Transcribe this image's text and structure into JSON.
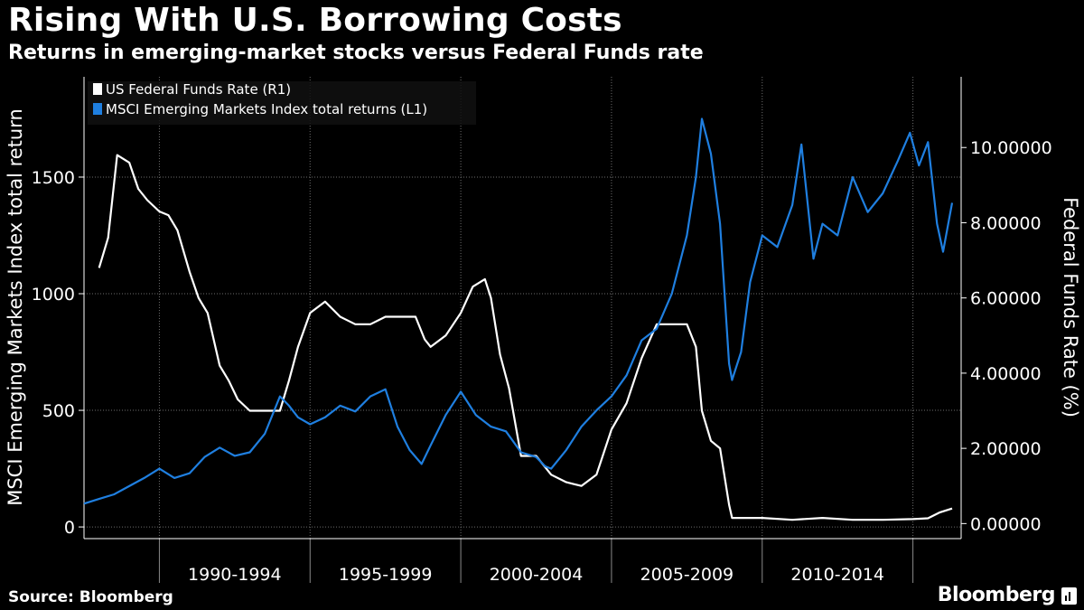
{
  "header": {
    "title": "Rising With U.S. Borrowing Costs",
    "subtitle": "Returns in emerging-market stocks versus Federal Funds rate"
  },
  "footer": {
    "source": "Source: Bloomberg",
    "brand": "Bloomberg"
  },
  "colors": {
    "background": "#000000",
    "fed_funds_line": "#ffffff",
    "msci_line": "#1f7fe0",
    "grid": "#6e6e6e"
  },
  "chart_data": {
    "type": "line",
    "title": "Rising With U.S. Borrowing Costs",
    "subtitle": "Returns in emerging-market stocks versus Federal Funds rate",
    "left_axis": {
      "label": "MSCI Emerging Markets Index total return",
      "ticks": [
        "0",
        "500",
        "1000",
        "1500"
      ],
      "range": [
        -50,
        1930
      ]
    },
    "right_axis": {
      "label": "Federal Funds Rate (%)",
      "ticks": [
        "0.00000",
        "2.00000",
        "4.00000",
        "6.00000",
        "8.00000",
        "10.00000"
      ],
      "range": [
        -0.4,
        11.88
      ]
    },
    "x_axis": {
      "range": [
        1987.5,
        2016.6
      ],
      "ticks": [
        1990,
        1995,
        2000,
        2005,
        2010,
        2015
      ],
      "labels": [
        "1990-1994",
        "1995-1999",
        "2000-2004",
        "2005-2009",
        "2010-2014"
      ]
    },
    "grid": true,
    "legend_position": "top-left",
    "series": [
      {
        "name": "US Federal Funds Rate  (R1)",
        "axis": "right",
        "x": [
          1988.0,
          1988.3,
          1988.6,
          1989.0,
          1989.3,
          1989.6,
          1990.0,
          1990.3,
          1990.6,
          1991.0,
          1991.3,
          1991.6,
          1992.0,
          1992.3,
          1992.6,
          1993.0,
          1993.5,
          1994.0,
          1994.3,
          1994.6,
          1995.0,
          1995.5,
          1996.0,
          1996.5,
          1997.0,
          1997.5,
          1998.0,
          1998.5,
          1998.8,
          1999.0,
          1999.5,
          2000.0,
          2000.4,
          2000.8,
          2001.0,
          2001.3,
          2001.6,
          2002.0,
          2002.5,
          2003.0,
          2003.5,
          2004.0,
          2004.5,
          2005.0,
          2005.5,
          2006.0,
          2006.5,
          2007.0,
          2007.5,
          2007.8,
          2008.0,
          2008.3,
          2008.6,
          2008.9,
          2009.0,
          2010.0,
          2011.0,
          2012.0,
          2013.0,
          2014.0,
          2015.0,
          2015.5,
          2015.9,
          2016.3
        ],
        "values": [
          6.8,
          7.6,
          9.8,
          9.6,
          8.9,
          8.6,
          8.3,
          8.2,
          7.8,
          6.7,
          6.0,
          5.6,
          4.2,
          3.8,
          3.3,
          3.0,
          3.0,
          3.0,
          3.8,
          4.7,
          5.6,
          5.9,
          5.5,
          5.3,
          5.3,
          5.5,
          5.5,
          5.5,
          4.9,
          4.7,
          5.0,
          5.6,
          6.3,
          6.5,
          6.0,
          4.5,
          3.6,
          1.8,
          1.8,
          1.3,
          1.1,
          1.0,
          1.3,
          2.5,
          3.2,
          4.4,
          5.3,
          5.3,
          5.3,
          4.7,
          3.0,
          2.2,
          2.0,
          0.5,
          0.15,
          0.15,
          0.1,
          0.15,
          0.1,
          0.1,
          0.12,
          0.14,
          0.3,
          0.4
        ]
      },
      {
        "name": "MSCI Emerging Markets Index total returns (L1)",
        "axis": "left",
        "x": [
          1987.5,
          1988.0,
          1988.5,
          1989.0,
          1989.5,
          1990.0,
          1990.5,
          1991.0,
          1991.5,
          1992.0,
          1992.5,
          1993.0,
          1993.5,
          1994.0,
          1994.3,
          1994.6,
          1995.0,
          1995.5,
          1996.0,
          1996.5,
          1997.0,
          1997.5,
          1997.9,
          1998.3,
          1998.7,
          1999.0,
          1999.5,
          2000.0,
          2000.5,
          2001.0,
          2001.5,
          2002.0,
          2002.5,
          2002.8,
          2003.0,
          2003.5,
          2004.0,
          2004.5,
          2005.0,
          2005.5,
          2006.0,
          2006.5,
          2007.0,
          2007.5,
          2007.8,
          2008.0,
          2008.3,
          2008.6,
          2008.9,
          2009.0,
          2009.3,
          2009.6,
          2010.0,
          2010.5,
          2011.0,
          2011.3,
          2011.7,
          2012.0,
          2012.5,
          2013.0,
          2013.5,
          2014.0,
          2014.5,
          2014.9,
          2015.2,
          2015.5,
          2015.8,
          2016.0,
          2016.3
        ],
        "values": [
          100,
          120,
          140,
          175,
          210,
          250,
          210,
          230,
          300,
          340,
          305,
          320,
          400,
          560,
          520,
          470,
          440,
          470,
          520,
          495,
          560,
          590,
          430,
          330,
          270,
          350,
          480,
          580,
          480,
          430,
          410,
          320,
          300,
          260,
          250,
          330,
          430,
          500,
          560,
          650,
          800,
          850,
          1000,
          1250,
          1500,
          1750,
          1600,
          1300,
          700,
          630,
          750,
          1050,
          1250,
          1200,
          1380,
          1640,
          1150,
          1300,
          1250,
          1500,
          1350,
          1430,
          1570,
          1690,
          1550,
          1650,
          1300,
          1180,
          1390
        ]
      }
    ]
  }
}
